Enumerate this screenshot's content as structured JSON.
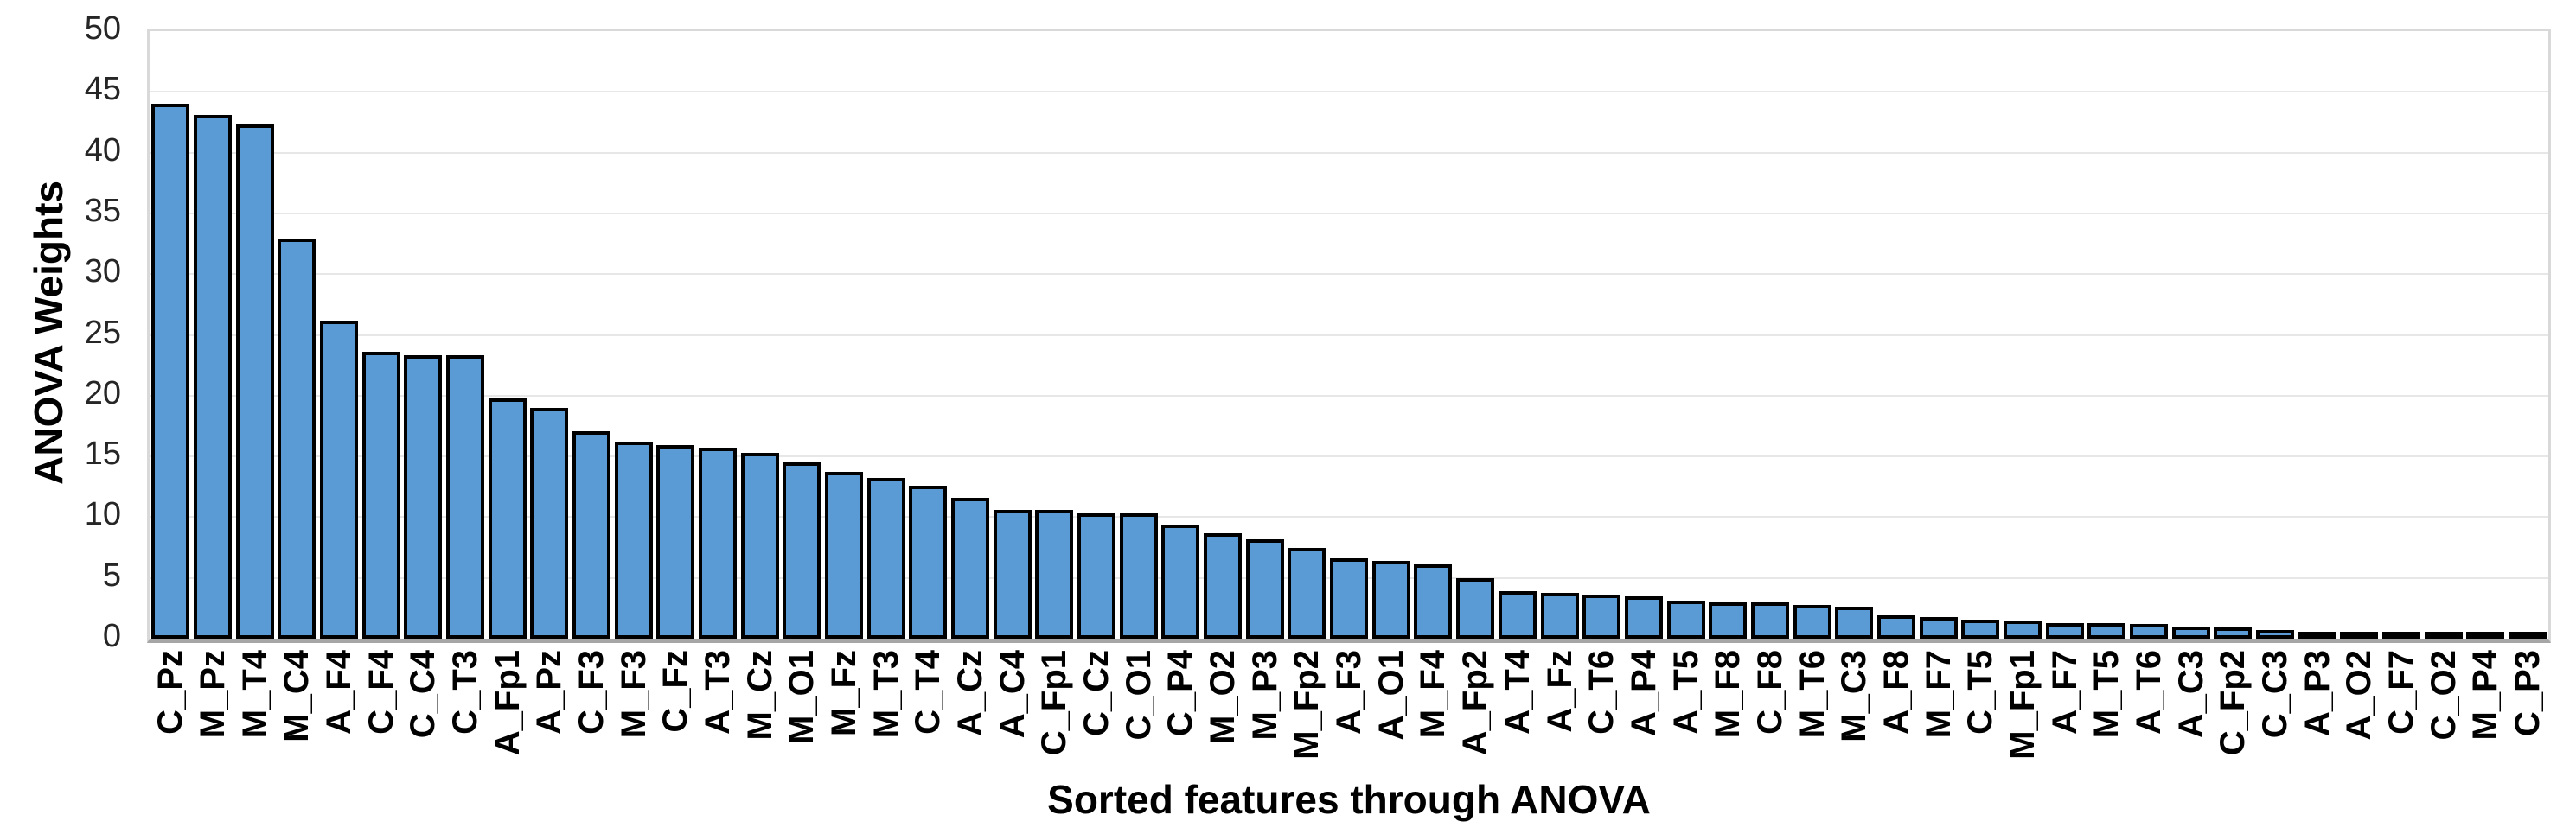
{
  "chart_data": {
    "type": "bar",
    "title": "",
    "xlabel": "Sorted features through ANOVA",
    "ylabel": "ANOVA Weights",
    "ylim": [
      0,
      50
    ],
    "yticks": [
      0,
      5,
      10,
      15,
      20,
      25,
      30,
      35,
      40,
      45,
      50
    ],
    "grid": true,
    "legend_position": "none",
    "categories": [
      "C_Pz",
      "M_Pz",
      "M_T4",
      "M_C4",
      "A_F4",
      "C_F4",
      "C_C4",
      "C_T3",
      "A_Fp1",
      "A_Pz",
      "C_F3",
      "M_F3",
      "C_Fz",
      "A_T3",
      "M_Cz",
      "M_O1",
      "M_Fz",
      "M_T3",
      "C_T4",
      "A_Cz",
      "A_C4",
      "C_Fp1",
      "C_Cz",
      "C_O1",
      "C_P4",
      "M_O2",
      "M_P3",
      "M_Fp2",
      "A_F3",
      "A_O1",
      "M_F4",
      "A_Fp2",
      "A_T4",
      "A_Fz",
      "C_T6",
      "A_P4",
      "A_T5",
      "M_F8",
      "C_F8",
      "M_T6",
      "M_C3",
      "A_F8",
      "M_F7",
      "C_T5",
      "M_Fp1",
      "A_F7",
      "M_T5",
      "A_T6",
      "A_C3",
      "C_Fp2",
      "C_C3",
      "A_P3",
      "A_O2",
      "C_F7",
      "C_O2",
      "M_P4",
      "C_P3"
    ],
    "values": [
      44.0,
      43.1,
      42.3,
      32.9,
      26.2,
      23.6,
      23.3,
      23.3,
      19.8,
      19.0,
      17.1,
      16.2,
      15.9,
      15.7,
      15.3,
      14.5,
      13.7,
      13.2,
      12.6,
      11.6,
      10.6,
      10.6,
      10.3,
      10.3,
      9.4,
      8.7,
      8.2,
      7.5,
      6.6,
      6.4,
      6.1,
      5.0,
      3.9,
      3.8,
      3.6,
      3.5,
      3.1,
      3.0,
      3.0,
      2.8,
      2.6,
      1.9,
      1.8,
      1.6,
      1.5,
      1.3,
      1.3,
      1.2,
      1.0,
      0.9,
      0.7,
      0.5,
      0.5,
      0.3,
      0.3,
      0.3,
      0.1
    ],
    "colors": {
      "bar_fill": "#5B9BD5",
      "bar_border": "#000000",
      "gridline": "#E7E7E7",
      "plot_border": "#D9D9D9",
      "axis_line": "#A6A6A6",
      "tick_text": "#262626",
      "label_text": "#000000"
    }
  }
}
